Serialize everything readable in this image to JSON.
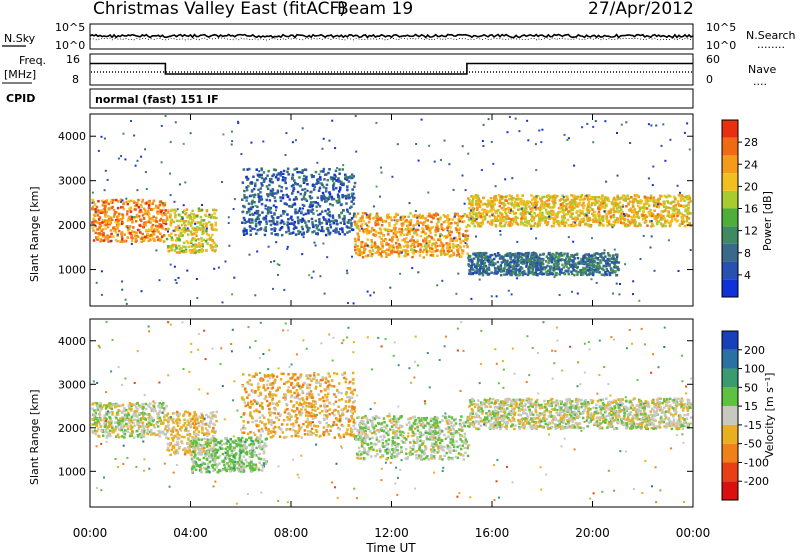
{
  "header": {
    "station": "Christmas Valley East (fitACF)",
    "beam": "Beam 19",
    "date": "27/Apr/2012"
  },
  "noise_panel": {
    "left_label": "N.Sky",
    "left_ticks": [
      "10^5",
      "10^0"
    ],
    "right_ticks": [
      "10^5",
      "10^0"
    ],
    "right_label": "N.Search",
    "right_dots": "........"
  },
  "freq_panel": {
    "label_line1": "Freq.",
    "label_line2": "[MHz]",
    "left_ticks": [
      "16",
      "8"
    ],
    "right_ticks": [
      "60",
      "0"
    ],
    "right_label": "Nave",
    "right_dots": "....",
    "freq_steps": [
      {
        "start_hr": 0,
        "end_hr": 3,
        "freq_mhz": 14.2
      },
      {
        "start_hr": 3,
        "end_hr": 15,
        "freq_mhz": 10.0
      },
      {
        "start_hr": 15,
        "end_hr": 24,
        "freq_mhz": 14.2
      }
    ]
  },
  "cpid": {
    "label": "CPID",
    "text": "normal (fast) 151 IF"
  },
  "power_panel": {
    "ylabel": "Slant Range [km]",
    "yticks": [
      "1000",
      "2000",
      "3000",
      "4000"
    ],
    "colorbar_label": "Power [dB]",
    "colorbar_ticks": [
      "4",
      "8",
      "12",
      "16",
      "20",
      "24",
      "28"
    ],
    "colorbar_colors": [
      "#1030d8",
      "#2850b0",
      "#3a6a8a",
      "#3f8a60",
      "#4fae3a",
      "#a8cc30",
      "#f0c020",
      "#f59a1a",
      "#f06a14",
      "#e83010"
    ]
  },
  "velocity_panel": {
    "ylabel": "Slant Range [km]",
    "yticks": [
      "1000",
      "2000",
      "3000",
      "4000"
    ],
    "colorbar_label": "Velocity [m s⁻¹]",
    "colorbar_ticks": [
      "200",
      "100",
      "50",
      "15",
      "-15",
      "-50",
      "-100",
      "-200"
    ],
    "colorbar_colors": [
      "#1840b8",
      "#2a70a0",
      "#3a9a70",
      "#60c040",
      "#c8c8c0",
      "#e8b020",
      "#f08018",
      "#e84014",
      "#d81010"
    ]
  },
  "x_axis": {
    "ticks": [
      "00:00",
      "04:00",
      "08:00",
      "12:00",
      "16:00",
      "20:00",
      "00:00"
    ],
    "label": "Time UT"
  },
  "chart_data": {
    "type": "heatmap",
    "x_range_hours": [
      0,
      24
    ],
    "y_range_km": [
      180,
      4500
    ],
    "power_scatter_bands": [
      {
        "t0": 0,
        "t1": 3,
        "r0": 1650,
        "r1": 2600,
        "power": 24
      },
      {
        "t0": 3,
        "t1": 5,
        "r0": 1400,
        "r1": 2400,
        "power": 18
      },
      {
        "t0": 6,
        "t1": 10.5,
        "r0": 1800,
        "r1": 3300,
        "power": 6
      },
      {
        "t0": 10.5,
        "t1": 15,
        "r0": 1300,
        "r1": 2300,
        "power": 22
      },
      {
        "t0": 15,
        "t1": 24,
        "r0": 2000,
        "r1": 2700,
        "power": 20
      },
      {
        "t0": 15,
        "t1": 21,
        "r0": 900,
        "r1": 1400,
        "power": 8
      }
    ],
    "velocity_scatter_bands": [
      {
        "t0": 0,
        "t1": 3,
        "r0": 1800,
        "r1": 2600,
        "velocity": 0
      },
      {
        "t0": 3,
        "t1": 5,
        "r0": 1400,
        "r1": 2400,
        "velocity": -40
      },
      {
        "t0": 6,
        "t1": 10.5,
        "r0": 1800,
        "r1": 3300,
        "velocity": -60
      },
      {
        "t0": 4,
        "t1": 7,
        "r0": 1000,
        "r1": 1800,
        "velocity": 40
      },
      {
        "t0": 10.5,
        "t1": 15,
        "r0": 1300,
        "r1": 2300,
        "velocity": 20
      },
      {
        "t0": 15,
        "t1": 24,
        "r0": 2000,
        "r1": 2700,
        "velocity": 0
      }
    ]
  }
}
